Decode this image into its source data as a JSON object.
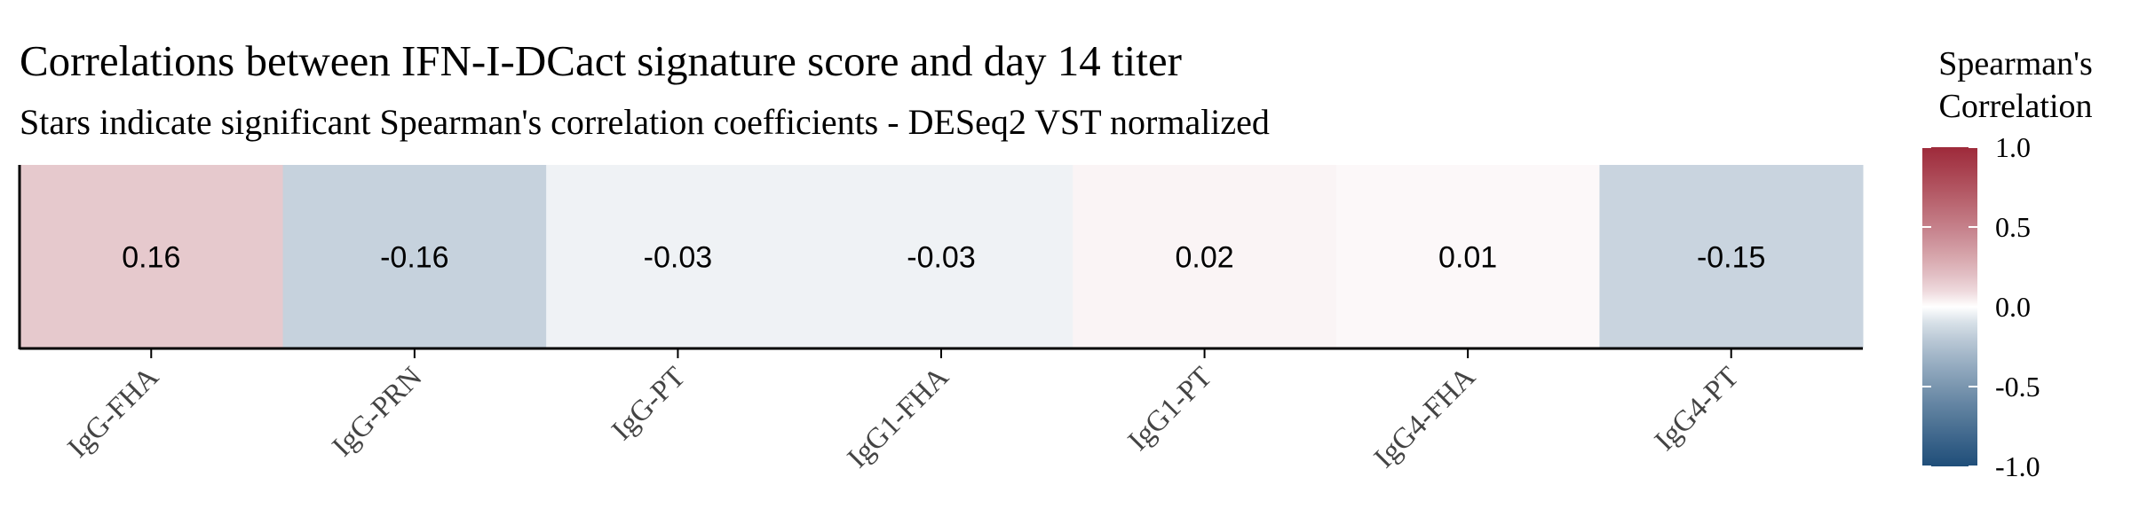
{
  "chart_data": {
    "type": "heatmap",
    "title": "Correlations between IFN-I-DCact signature score and day 14 titer",
    "subtitle": "Stars indicate significant Spearman's correlation coefficients - DESeq2 VST normalized",
    "categories": [
      "IgG-FHA",
      "IgG-PRN",
      "IgG-PT",
      "IgG1-FHA",
      "IgG1-PT",
      "IgG4-FHA",
      "IgG4-PT"
    ],
    "values": [
      0.16,
      -0.16,
      -0.03,
      -0.03,
      0.02,
      0.01,
      -0.15
    ],
    "value_labels": [
      "0.16",
      "-0.16",
      "-0.03",
      "-0.03",
      "0.02",
      "0.01",
      "-0.15"
    ],
    "legend": {
      "title": "Spearman's Correlation",
      "title_lines": [
        "Spearman's",
        "Correlation"
      ],
      "range": [
        -1.0,
        1.0
      ],
      "ticks": [
        1.0,
        0.5,
        0.0,
        -0.5,
        -1.0
      ],
      "tick_labels": [
        "1.0",
        "0.5",
        "0.0",
        "-0.5",
        "-1.0"
      ],
      "colors": {
        "low": "#1F4E79",
        "mid": "#FFFFFF",
        "high": "#9E2A3A"
      },
      "placement": "right"
    }
  }
}
